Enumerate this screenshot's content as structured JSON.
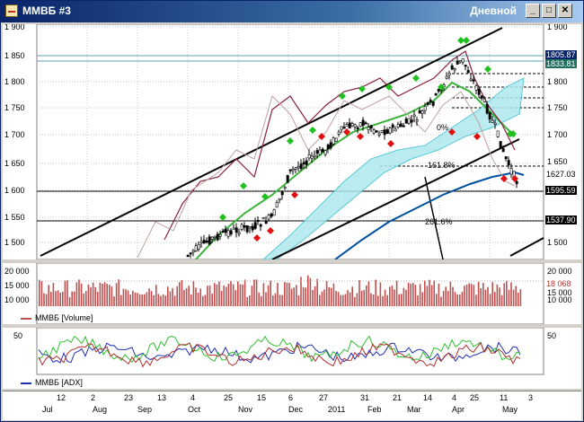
{
  "window": {
    "title": "ММВБ #3",
    "mode": "Дневной"
  },
  "controls": {
    "minimize": "_",
    "maximize": "□",
    "close": "✕"
  },
  "price_axis": {
    "left": [
      "1 900",
      "1 850",
      "1 800",
      "1 750",
      "1 700",
      "1 650",
      "1 600",
      "1 550",
      "1 500"
    ],
    "right": [
      "1 900",
      "1 850",
      "1 800",
      "1 750",
      "1 700",
      "1 650",
      "1 600",
      "1 550",
      "1 500"
    ],
    "marks": [
      "1805.87",
      "1833.81",
      "1627.03",
      "1595.59",
      "1537.90"
    ]
  },
  "fib": {
    "f1": "161.8%",
    "f2": "261.6%",
    "f3": "0%"
  },
  "volume": {
    "legend": "ММВБ [Volume]",
    "axis": [
      "20 000",
      "15 000",
      "10 000"
    ],
    "value": "18 068",
    "sub": "15 000"
  },
  "adx": {
    "legend": "ММВБ [ADX]",
    "axis_left": "50",
    "axis_right": "50"
  },
  "dates": {
    "days": [
      "12",
      "2",
      "23",
      "13",
      "4",
      "25",
      "15",
      "6",
      "27",
      "31",
      "21",
      "14",
      "4",
      "25",
      "11",
      "3"
    ],
    "months": [
      "Jul",
      "Aug",
      "Sep",
      "Oct",
      "Nov",
      "Dec",
      "2011",
      "Feb",
      "Mar",
      "Apr",
      "May"
    ]
  },
  "colors": {
    "up": "#00a000",
    "down": "#d01010",
    "ma": "#0050a0",
    "volume": "#c05050",
    "cloud": "#80e0e0"
  }
}
